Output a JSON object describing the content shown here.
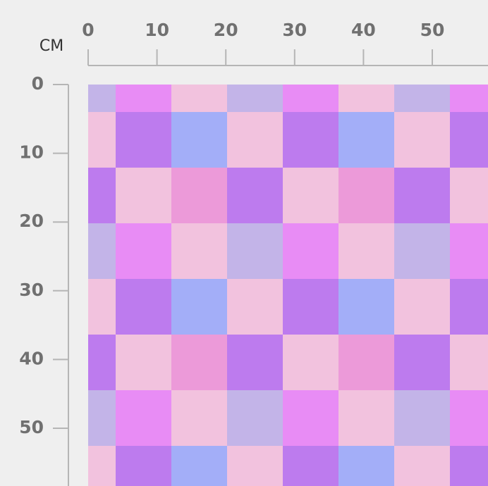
{
  "ruler": {
    "unit": "CM",
    "x_ticks": [
      0,
      10,
      20,
      30,
      40,
      50
    ],
    "y_ticks": [
      0,
      10,
      20,
      30,
      40,
      50
    ]
  }
}
